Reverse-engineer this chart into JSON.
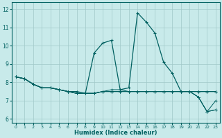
{
  "xlabel": "Humidex (Indice chaleur)",
  "ylabel": "",
  "bg_color": "#c8eaea",
  "grid_color": "#a0c8c8",
  "line_color": "#006060",
  "xlim": [
    -0.5,
    23.5
  ],
  "ylim": [
    5.8,
    12.4
  ],
  "yticks": [
    6,
    7,
    8,
    9,
    10,
    11,
    12
  ],
  "xticks": [
    0,
    1,
    2,
    3,
    4,
    5,
    6,
    7,
    8,
    9,
    10,
    11,
    12,
    13,
    14,
    15,
    16,
    17,
    18,
    19,
    20,
    21,
    22,
    23
  ],
  "lines": [
    [
      8.3,
      8.2,
      7.9,
      7.7,
      7.7,
      7.6,
      7.5,
      7.5,
      7.4,
      9.6,
      10.15,
      10.3,
      7.6,
      7.7,
      11.8,
      11.3,
      10.7,
      9.1,
      8.5,
      7.5,
      7.5,
      7.5,
      7.5,
      7.5
    ],
    [
      8.3,
      8.2,
      7.9,
      7.7,
      7.7,
      7.6,
      7.5,
      7.4,
      7.4,
      7.4,
      7.5,
      7.6,
      7.6,
      7.5,
      7.5,
      7.5,
      7.5,
      7.5,
      7.5,
      7.5,
      7.5,
      7.5,
      7.5,
      7.5
    ],
    [
      8.3,
      8.2,
      7.9,
      7.7,
      7.7,
      7.6,
      7.5,
      7.4,
      7.4,
      7.4,
      7.5,
      7.5,
      7.5,
      7.5,
      7.5,
      7.5,
      7.5,
      7.5,
      7.5,
      7.5,
      7.5,
      7.2,
      6.4,
      6.5
    ],
    [
      8.3,
      8.2,
      7.9,
      7.7,
      7.7,
      7.6,
      7.5,
      7.4,
      7.4,
      7.4,
      7.5,
      7.5,
      7.5,
      7.5,
      7.5,
      7.5,
      7.5,
      7.5,
      7.5,
      7.5,
      7.5,
      7.2,
      6.4,
      7.0
    ],
    [
      8.3,
      8.2,
      7.9,
      7.7,
      7.7,
      7.6,
      7.5,
      7.4,
      7.4,
      7.4,
      7.5,
      7.5,
      7.5,
      7.5,
      7.5,
      7.5,
      7.5,
      7.5,
      7.5,
      7.5,
      7.5,
      7.2,
      6.4,
      6.5
    ]
  ]
}
